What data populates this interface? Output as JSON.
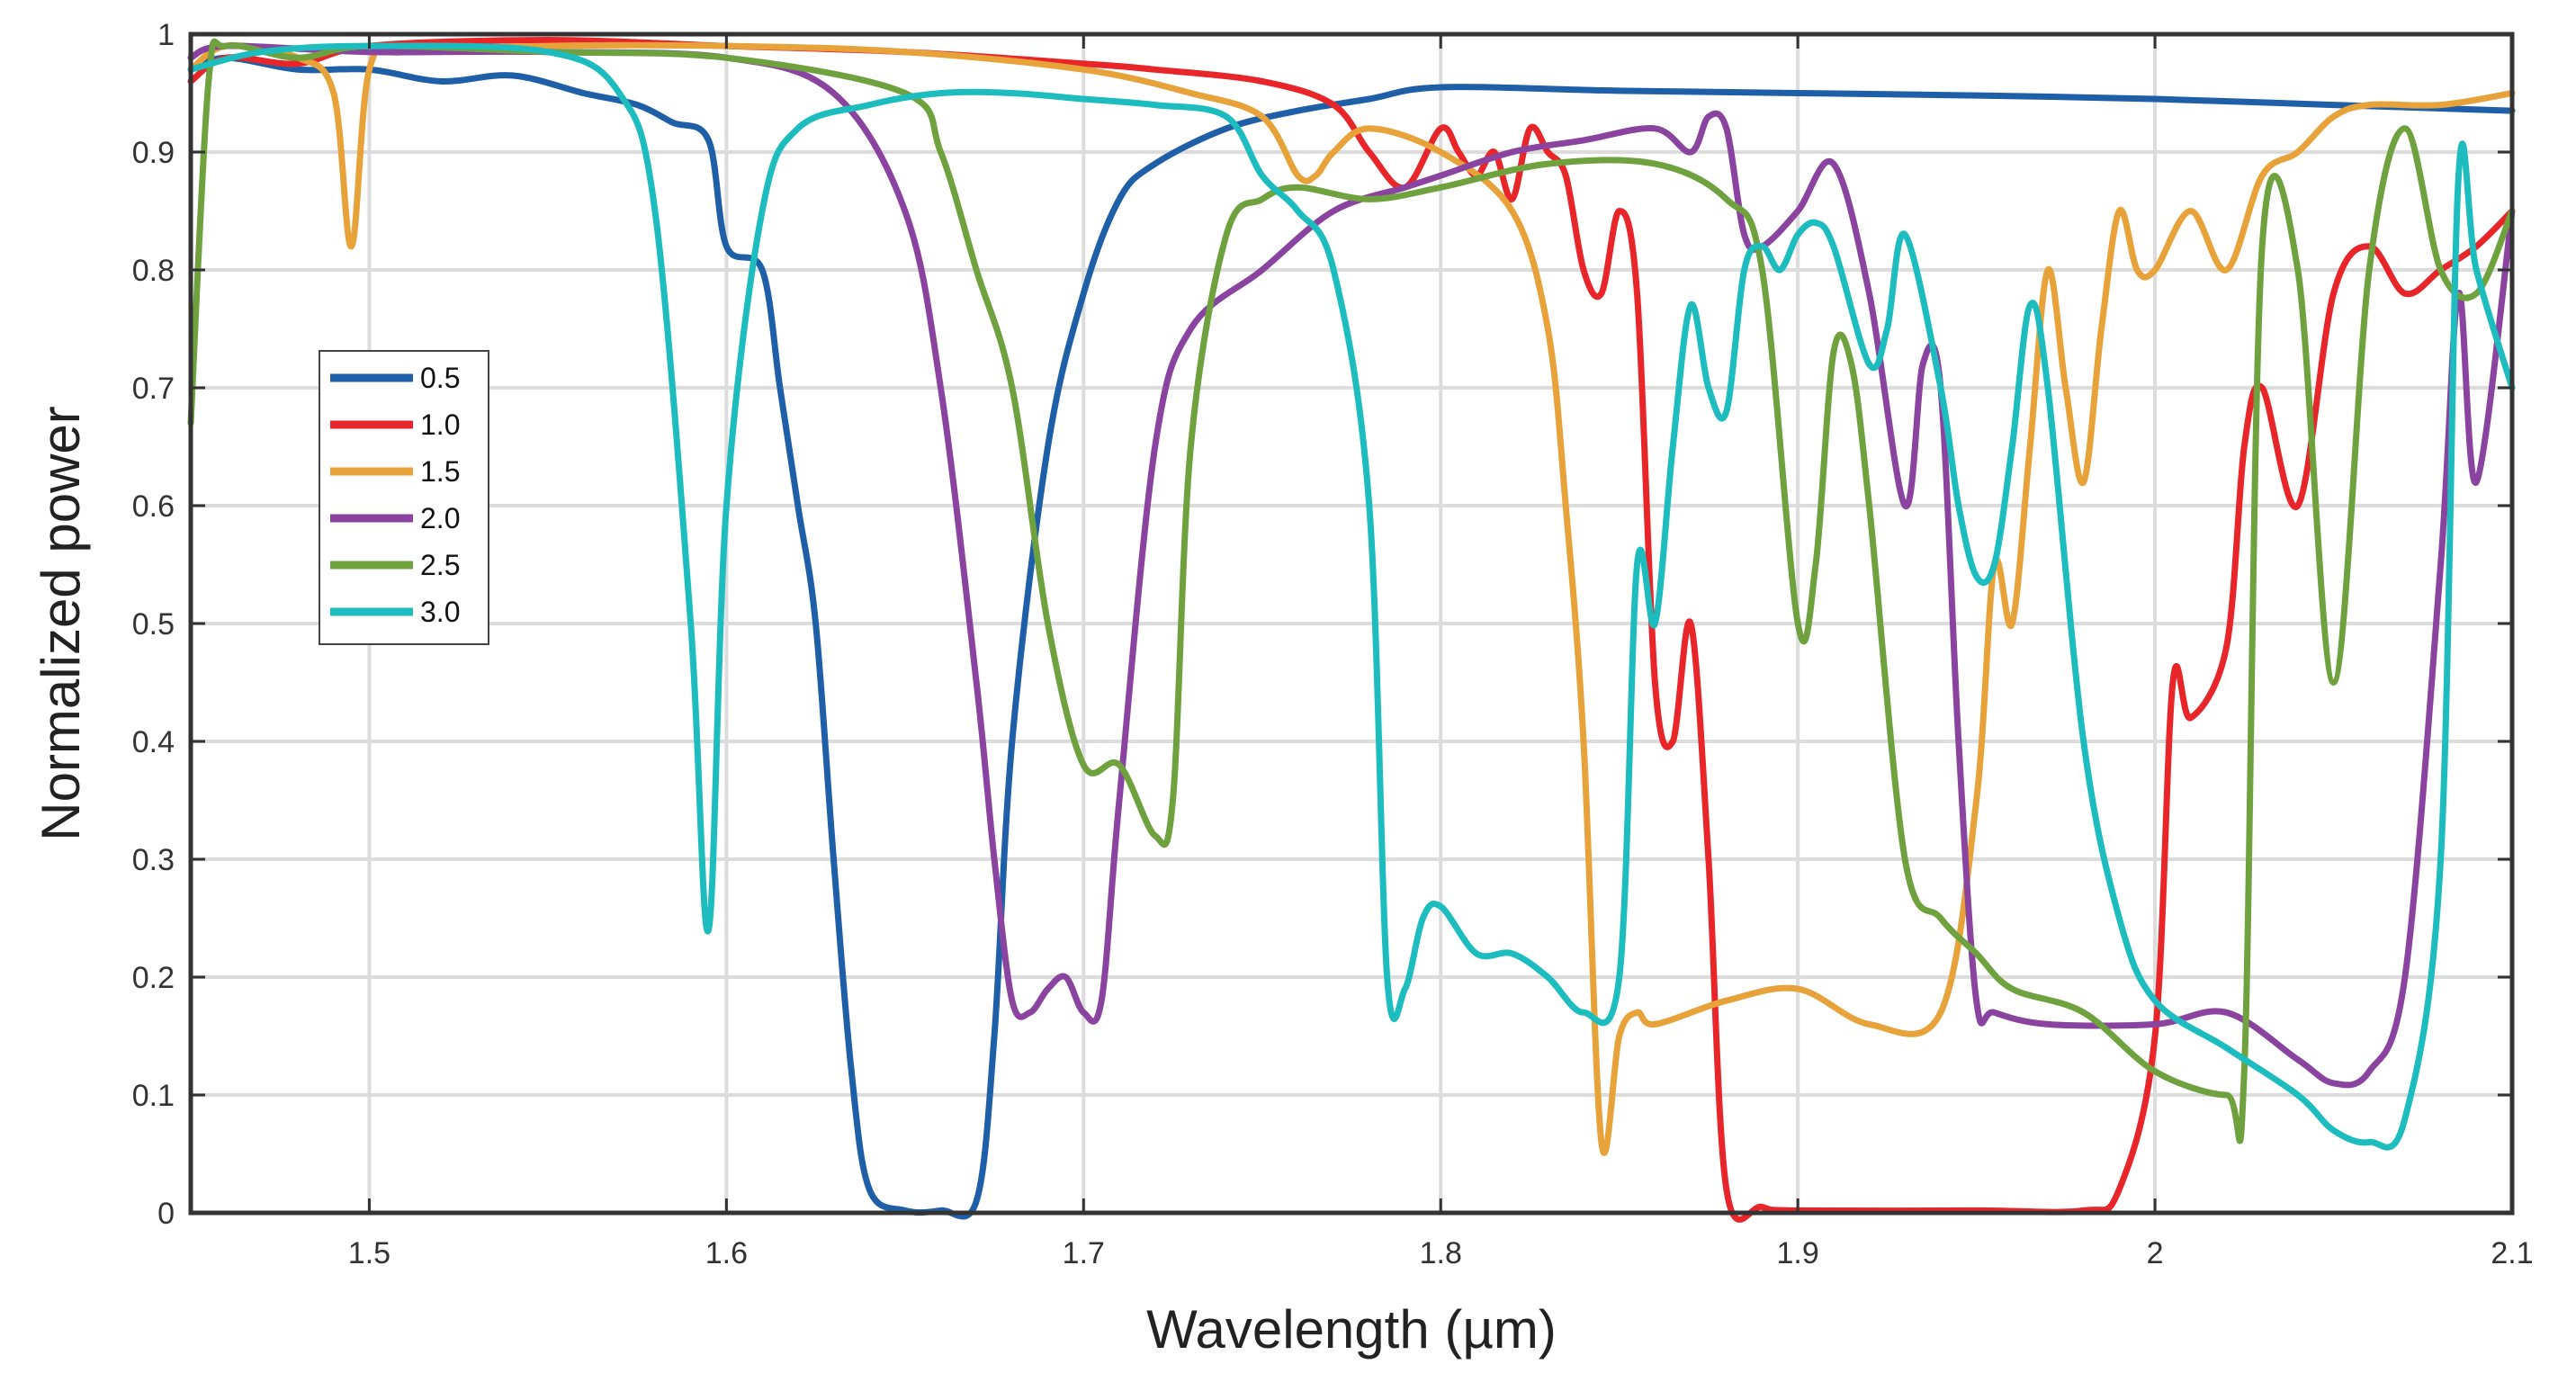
{
  "chart_data": {
    "type": "line",
    "title": "",
    "xlabel": "Wavelength (µm)",
    "ylabel": "Normalized power",
    "xlim": [
      1.45,
      2.1
    ],
    "ylim": [
      0,
      1
    ],
    "xticks": [
      1.5,
      1.6,
      1.7,
      1.8,
      1.9,
      2.0,
      2.1
    ],
    "xtick_labels": [
      "1.5",
      "1.6",
      "1.7",
      "1.8",
      "1.9",
      "2",
      "2.1"
    ],
    "yticks": [
      0,
      0.1,
      0.2,
      0.3,
      0.4,
      0.5,
      0.6,
      0.7,
      0.8,
      0.9,
      1
    ],
    "ytick_labels": [
      "0",
      "0.1",
      "0.2",
      "0.3",
      "0.4",
      "0.5",
      "0.6",
      "0.7",
      "0.8",
      "0.9",
      "1"
    ],
    "grid": true,
    "legend_position": "left",
    "series": [
      {
        "name": "0.5",
        "color": "#1f5fa8",
        "x": [
          1.45,
          1.46,
          1.48,
          1.5,
          1.52,
          1.54,
          1.56,
          1.575,
          1.585,
          1.595,
          1.6,
          1.61,
          1.615,
          1.62,
          1.625,
          1.63,
          1.635,
          1.64,
          1.65,
          1.66,
          1.67,
          1.675,
          1.68,
          1.69,
          1.7,
          1.71,
          1.72,
          1.74,
          1.76,
          1.78,
          1.8,
          1.85,
          1.9,
          1.95,
          2.0,
          2.05,
          2.1
        ],
        "y": [
          0.97,
          0.98,
          0.97,
          0.97,
          0.96,
          0.965,
          0.95,
          0.94,
          0.925,
          0.91,
          0.82,
          0.8,
          0.7,
          0.6,
          0.5,
          0.3,
          0.12,
          0.02,
          0.002,
          0.002,
          0.01,
          0.15,
          0.4,
          0.65,
          0.78,
          0.86,
          0.89,
          0.92,
          0.935,
          0.945,
          0.955,
          0.952,
          0.95,
          0.948,
          0.945,
          0.94,
          0.935
        ]
      },
      {
        "name": "1.0",
        "color": "#e8262a",
        "x": [
          1.45,
          1.46,
          1.48,
          1.5,
          1.55,
          1.6,
          1.65,
          1.7,
          1.72,
          1.75,
          1.77,
          1.78,
          1.79,
          1.8,
          1.805,
          1.81,
          1.815,
          1.82,
          1.825,
          1.83,
          1.835,
          1.84,
          1.845,
          1.85,
          1.855,
          1.86,
          1.865,
          1.87,
          1.875,
          1.88,
          1.89,
          1.9,
          1.95,
          1.98,
          1.99,
          2.0,
          2.005,
          2.01,
          2.02,
          2.025,
          2.03,
          2.04,
          2.05,
          2.06,
          2.07,
          2.08,
          2.09,
          2.1
        ],
        "y": [
          0.96,
          0.98,
          0.975,
          0.99,
          0.995,
          0.99,
          0.985,
          0.975,
          0.97,
          0.96,
          0.94,
          0.9,
          0.87,
          0.92,
          0.9,
          0.88,
          0.9,
          0.86,
          0.92,
          0.9,
          0.88,
          0.8,
          0.78,
          0.85,
          0.78,
          0.45,
          0.4,
          0.5,
          0.3,
          0.02,
          0.005,
          0.002,
          0.002,
          0.002,
          0.02,
          0.15,
          0.45,
          0.42,
          0.48,
          0.65,
          0.7,
          0.6,
          0.78,
          0.82,
          0.78,
          0.8,
          0.82,
          0.85
        ]
      },
      {
        "name": "1.5",
        "color": "#e8a23a",
        "x": [
          1.45,
          1.46,
          1.48,
          1.49,
          1.495,
          1.5,
          1.51,
          1.55,
          1.6,
          1.65,
          1.7,
          1.73,
          1.75,
          1.76,
          1.765,
          1.77,
          1.78,
          1.8,
          1.82,
          1.83,
          1.835,
          1.84,
          1.845,
          1.85,
          1.855,
          1.86,
          1.88,
          1.9,
          1.92,
          1.94,
          1.95,
          1.955,
          1.96,
          1.965,
          1.97,
          1.975,
          1.98,
          1.985,
          1.99,
          1.995,
          2.0,
          2.01,
          2.02,
          2.03,
          2.04,
          2.05,
          2.06,
          2.08,
          2.1
        ],
        "y": [
          0.97,
          0.99,
          0.98,
          0.95,
          0.82,
          0.97,
          0.985,
          0.99,
          0.99,
          0.985,
          0.97,
          0.95,
          0.93,
          0.88,
          0.88,
          0.9,
          0.92,
          0.9,
          0.85,
          0.75,
          0.6,
          0.4,
          0.06,
          0.15,
          0.17,
          0.16,
          0.18,
          0.19,
          0.16,
          0.17,
          0.35,
          0.55,
          0.5,
          0.65,
          0.8,
          0.7,
          0.62,
          0.75,
          0.85,
          0.8,
          0.8,
          0.85,
          0.8,
          0.88,
          0.9,
          0.93,
          0.94,
          0.94,
          0.95
        ]
      },
      {
        "name": "2.0",
        "color": "#8a44a0",
        "x": [
          1.45,
          1.46,
          1.5,
          1.55,
          1.6,
          1.63,
          1.65,
          1.66,
          1.67,
          1.675,
          1.68,
          1.685,
          1.69,
          1.695,
          1.7,
          1.705,
          1.71,
          1.72,
          1.73,
          1.75,
          1.77,
          1.79,
          1.8,
          1.82,
          1.84,
          1.86,
          1.87,
          1.875,
          1.88,
          1.885,
          1.89,
          1.9,
          1.91,
          1.92,
          1.93,
          1.935,
          1.94,
          1.945,
          1.95,
          1.955,
          1.97,
          2.0,
          2.02,
          2.04,
          2.05,
          2.06,
          2.07,
          2.08,
          2.085,
          2.09,
          2.1
        ],
        "y": [
          0.98,
          0.99,
          0.985,
          0.985,
          0.98,
          0.95,
          0.85,
          0.7,
          0.45,
          0.3,
          0.18,
          0.17,
          0.19,
          0.2,
          0.17,
          0.18,
          0.35,
          0.65,
          0.75,
          0.8,
          0.85,
          0.87,
          0.88,
          0.9,
          0.91,
          0.92,
          0.9,
          0.93,
          0.92,
          0.83,
          0.82,
          0.85,
          0.89,
          0.78,
          0.6,
          0.72,
          0.7,
          0.4,
          0.18,
          0.17,
          0.16,
          0.16,
          0.17,
          0.13,
          0.11,
          0.12,
          0.2,
          0.55,
          0.78,
          0.62,
          0.85
        ]
      },
      {
        "name": "2.5",
        "color": "#6fa23e",
        "x": [
          1.45,
          1.455,
          1.46,
          1.48,
          1.5,
          1.55,
          1.6,
          1.65,
          1.66,
          1.67,
          1.68,
          1.69,
          1.7,
          1.71,
          1.72,
          1.725,
          1.73,
          1.74,
          1.75,
          1.76,
          1.78,
          1.8,
          1.83,
          1.86,
          1.88,
          1.89,
          1.9,
          1.905,
          1.91,
          1.915,
          1.92,
          1.93,
          1.94,
          1.95,
          1.96,
          1.98,
          2.0,
          2.02,
          2.025,
          2.03,
          2.04,
          2.05,
          2.06,
          2.07,
          2.08,
          2.09,
          2.1
        ],
        "y": [
          0.67,
          0.96,
          0.99,
          0.98,
          0.99,
          0.985,
          0.98,
          0.95,
          0.9,
          0.8,
          0.7,
          0.5,
          0.38,
          0.38,
          0.32,
          0.35,
          0.65,
          0.83,
          0.86,
          0.87,
          0.86,
          0.87,
          0.89,
          0.89,
          0.86,
          0.8,
          0.5,
          0.55,
          0.73,
          0.72,
          0.6,
          0.3,
          0.25,
          0.22,
          0.19,
          0.17,
          0.12,
          0.1,
          0.12,
          0.82,
          0.8,
          0.45,
          0.8,
          0.92,
          0.8,
          0.78,
          0.85
        ]
      },
      {
        "name": "3.0",
        "color": "#1dbcbf",
        "x": [
          1.45,
          1.47,
          1.5,
          1.55,
          1.57,
          1.58,
          1.59,
          1.595,
          1.6,
          1.61,
          1.62,
          1.64,
          1.66,
          1.68,
          1.7,
          1.72,
          1.74,
          1.75,
          1.76,
          1.77,
          1.78,
          1.785,
          1.79,
          1.795,
          1.8,
          1.81,
          1.82,
          1.83,
          1.84,
          1.85,
          1.855,
          1.86,
          1.865,
          1.87,
          1.875,
          1.88,
          1.885,
          1.89,
          1.895,
          1.9,
          1.905,
          1.91,
          1.92,
          1.925,
          1.93,
          1.94,
          1.945,
          1.95,
          1.955,
          1.96,
          1.965,
          1.97,
          1.98,
          1.99,
          2.0,
          2.02,
          2.04,
          2.05,
          2.06,
          2.07,
          2.08,
          2.085,
          2.09,
          2.1
        ],
        "y": [
          0.97,
          0.985,
          0.99,
          0.985,
          0.95,
          0.85,
          0.5,
          0.24,
          0.6,
          0.85,
          0.92,
          0.94,
          0.95,
          0.95,
          0.945,
          0.94,
          0.93,
          0.88,
          0.85,
          0.8,
          0.6,
          0.2,
          0.19,
          0.25,
          0.26,
          0.22,
          0.22,
          0.2,
          0.17,
          0.2,
          0.55,
          0.5,
          0.65,
          0.77,
          0.7,
          0.68,
          0.8,
          0.82,
          0.8,
          0.83,
          0.84,
          0.82,
          0.72,
          0.75,
          0.83,
          0.7,
          0.6,
          0.54,
          0.55,
          0.65,
          0.77,
          0.7,
          0.4,
          0.25,
          0.18,
          0.14,
          0.1,
          0.07,
          0.06,
          0.08,
          0.3,
          0.88,
          0.8,
          0.7
        ]
      }
    ]
  }
}
